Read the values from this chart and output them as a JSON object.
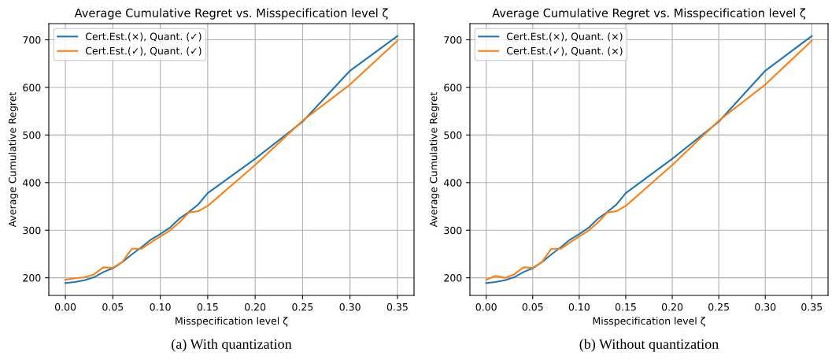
{
  "chart_data": [
    {
      "type": "line",
      "title": "Average Cumulative Regret vs. Misspecification level ζ",
      "xlabel": "Misspecification level ζ",
      "ylabel": "Average Cumulative Regret",
      "annotations": [
        "(a) With quantization"
      ],
      "x": [
        0.0,
        0.01,
        0.02,
        0.03,
        0.04,
        0.05,
        0.06,
        0.07,
        0.08,
        0.09,
        0.1,
        0.11,
        0.12,
        0.13,
        0.14,
        0.15,
        0.2,
        0.25,
        0.3,
        0.35
      ],
      "series": [
        {
          "name": "Cert.Est.(×), Quant. (✓)",
          "color": "#1f77b4",
          "values": [
            189,
            191,
            195,
            201,
            212,
            220,
            233,
            249,
            264,
            280,
            292,
            305,
            324,
            338,
            354,
            378,
            450,
            528,
            635,
            708
          ]
        },
        {
          "name": "Cert.Est.(✓), Quant. (✓)",
          "color": "#ff7f0e",
          "values": [
            196,
            199,
            201,
            207,
            222,
            221,
            233,
            261,
            261,
            274,
            287,
            299,
            316,
            337,
            340,
            351,
            437,
            530,
            606,
            698
          ]
        }
      ],
      "xlim": [
        -0.0175,
        0.3675
      ],
      "ylim": [
        163,
        734
      ],
      "xticks": [
        {
          "value": 0.0,
          "label": "0.00"
        },
        {
          "value": 0.05,
          "label": "0.05"
        },
        {
          "value": 0.1,
          "label": "0.10"
        },
        {
          "value": 0.15,
          "label": "0.15"
        },
        {
          "value": 0.2,
          "label": "0.20"
        },
        {
          "value": 0.25,
          "label": "0.25"
        },
        {
          "value": 0.3,
          "label": "0.30"
        },
        {
          "value": 0.35,
          "label": "0.35"
        }
      ],
      "yticks": [
        200,
        300,
        400,
        500,
        600,
        700
      ],
      "grid": true,
      "legend": "top left",
      "line_style": "solid",
      "marker": "none"
    },
    {
      "type": "line",
      "title": "Average Cumulative Regret vs. Misspecification level ζ",
      "xlabel": "Misspecification level ζ",
      "ylabel": "Average Cumulative Regret",
      "annotations": [
        "(b) Without quantization"
      ],
      "x": [
        0.0,
        0.01,
        0.02,
        0.03,
        0.04,
        0.05,
        0.06,
        0.07,
        0.08,
        0.09,
        0.1,
        0.11,
        0.12,
        0.13,
        0.14,
        0.15,
        0.2,
        0.25,
        0.3,
        0.35
      ],
      "series": [
        {
          "name": "Cert.Est.(×), Quant. (×)",
          "color": "#1f77b4",
          "values": [
            189,
            191,
            195,
            201,
            212,
            220,
            233,
            249,
            264,
            280,
            292,
            305,
            324,
            338,
            354,
            378,
            450,
            528,
            635,
            708
          ]
        },
        {
          "name": "Cert.Est.(✓), Quant. (×)",
          "color": "#ff7f0e",
          "values": [
            196,
            204,
            200,
            207,
            222,
            221,
            233,
            261,
            261,
            274,
            287,
            299,
            316,
            337,
            340,
            351,
            437,
            530,
            606,
            698
          ]
        }
      ],
      "xlim": [
        -0.0175,
        0.3675
      ],
      "ylim": [
        163,
        734
      ],
      "xticks": [
        {
          "value": 0.0,
          "label": "0.00"
        },
        {
          "value": 0.05,
          "label": "0.05"
        },
        {
          "value": 0.1,
          "label": "0.10"
        },
        {
          "value": 0.15,
          "label": "0.15"
        },
        {
          "value": 0.2,
          "label": "0.20"
        },
        {
          "value": 0.25,
          "label": "0.25"
        },
        {
          "value": 0.3,
          "label": "0.30"
        },
        {
          "value": 0.35,
          "label": "0.35"
        }
      ],
      "yticks": [
        200,
        300,
        400,
        500,
        600,
        700
      ],
      "grid": true,
      "legend": "top left",
      "line_style": "solid",
      "marker": "none"
    }
  ]
}
